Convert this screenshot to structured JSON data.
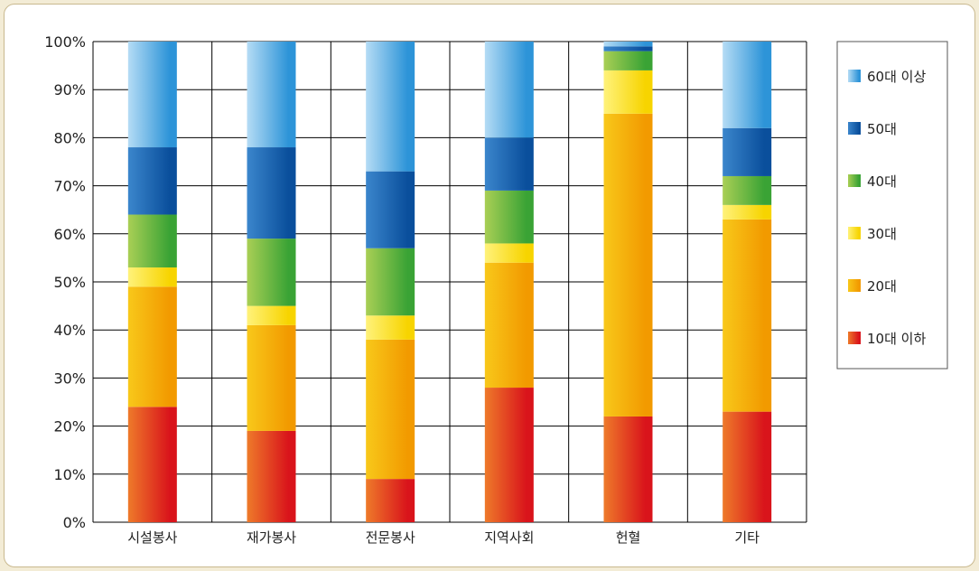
{
  "chart_data": {
    "type": "bar",
    "stacked": true,
    "percent": true,
    "categories": [
      "시설봉사",
      "재가봉사",
      "전문봉사",
      "지역사회",
      "헌혈",
      "기타"
    ],
    "series": [
      {
        "name": "10대 이하",
        "color": "#d9141b",
        "values": [
          24,
          19,
          9,
          28,
          22,
          23
        ]
      },
      {
        "name": "20대",
        "color": "#f29a00",
        "values": [
          25,
          22,
          29,
          26,
          63,
          40
        ]
      },
      {
        "name": "30대",
        "color": "#f7d400",
        "values": [
          4,
          4,
          5,
          4,
          9,
          3
        ]
      },
      {
        "name": "40대",
        "color": "#3aa335",
        "values": [
          11,
          14,
          14,
          11,
          4,
          6
        ]
      },
      {
        "name": "50대",
        "color": "#0a4f9c",
        "values": [
          14,
          19,
          16,
          11,
          1,
          10
        ]
      },
      {
        "name": "60대 이상",
        "color": "#2d94d8",
        "values": [
          22,
          22,
          27,
          20,
          1,
          18
        ]
      }
    ],
    "y_ticks": [
      "0%",
      "10%",
      "20%",
      "30%",
      "40%",
      "50%",
      "60%",
      "70%",
      "80%",
      "90%",
      "100%"
    ],
    "ylim": [
      0,
      100
    ],
    "grid": true,
    "legend": "right",
    "title": "",
    "xlabel": "",
    "ylabel": ""
  }
}
